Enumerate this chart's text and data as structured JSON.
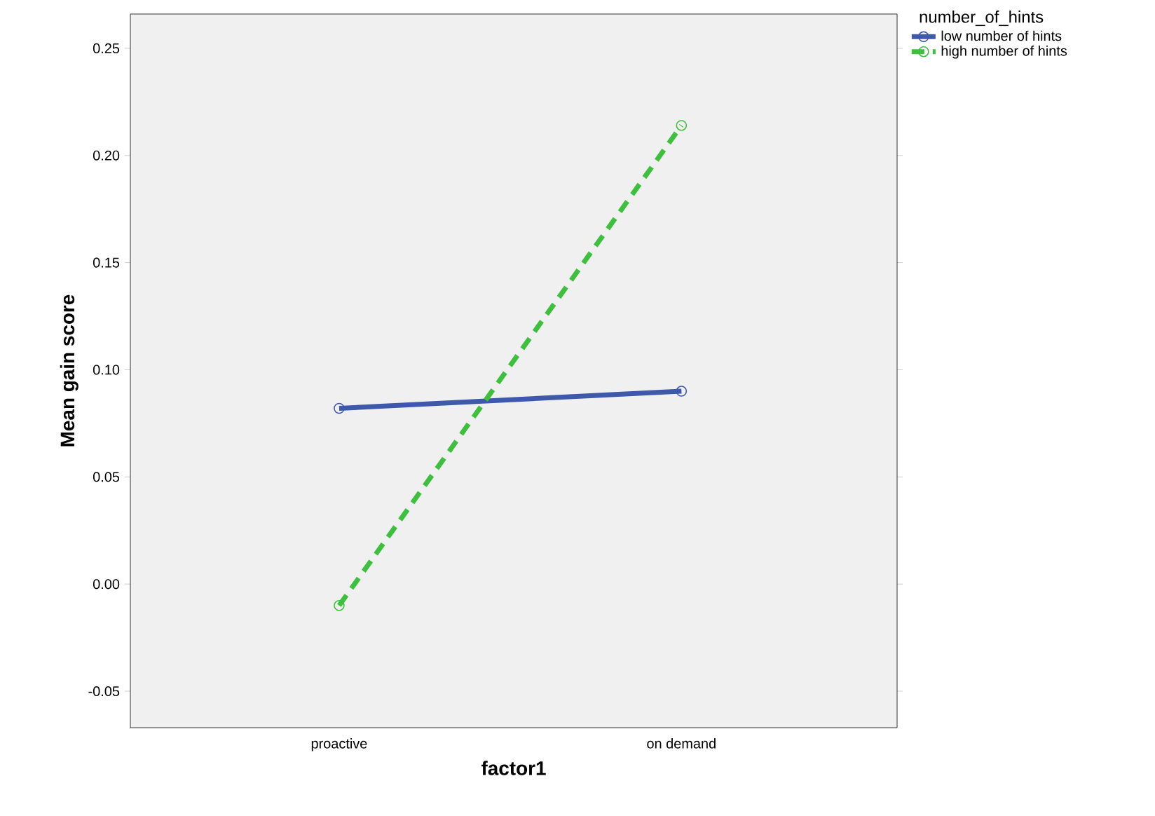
{
  "chart_data": {
    "type": "line",
    "xlabel": "factor1",
    "ylabel": "Mean gain score",
    "legend_title": "number_of_hints",
    "categories": [
      "proactive",
      "on demand"
    ],
    "series": [
      {
        "name": "low number of hints",
        "color": "#3e58ac",
        "values": [
          0.082,
          0.09
        ],
        "line_style": "solid"
      },
      {
        "name": "high number of hints",
        "color": "#3ec03e",
        "values": [
          -0.01,
          0.214
        ],
        "line_style": "dashed"
      }
    ],
    "ylim": [
      -0.067,
      0.266
    ],
    "yticks": [
      {
        "value": -0.05,
        "label": "-0.05"
      },
      {
        "value": 0,
        "label": "0.00"
      },
      {
        "value": 0.05,
        "label": "0.05"
      },
      {
        "value": 0.1,
        "label": "0.10"
      },
      {
        "value": 0.15,
        "label": "0.15"
      },
      {
        "value": 0.2,
        "label": "0.20"
      },
      {
        "value": 0.25,
        "label": "0.25"
      }
    ],
    "marker": "circle",
    "grid": false,
    "legend": "right"
  }
}
